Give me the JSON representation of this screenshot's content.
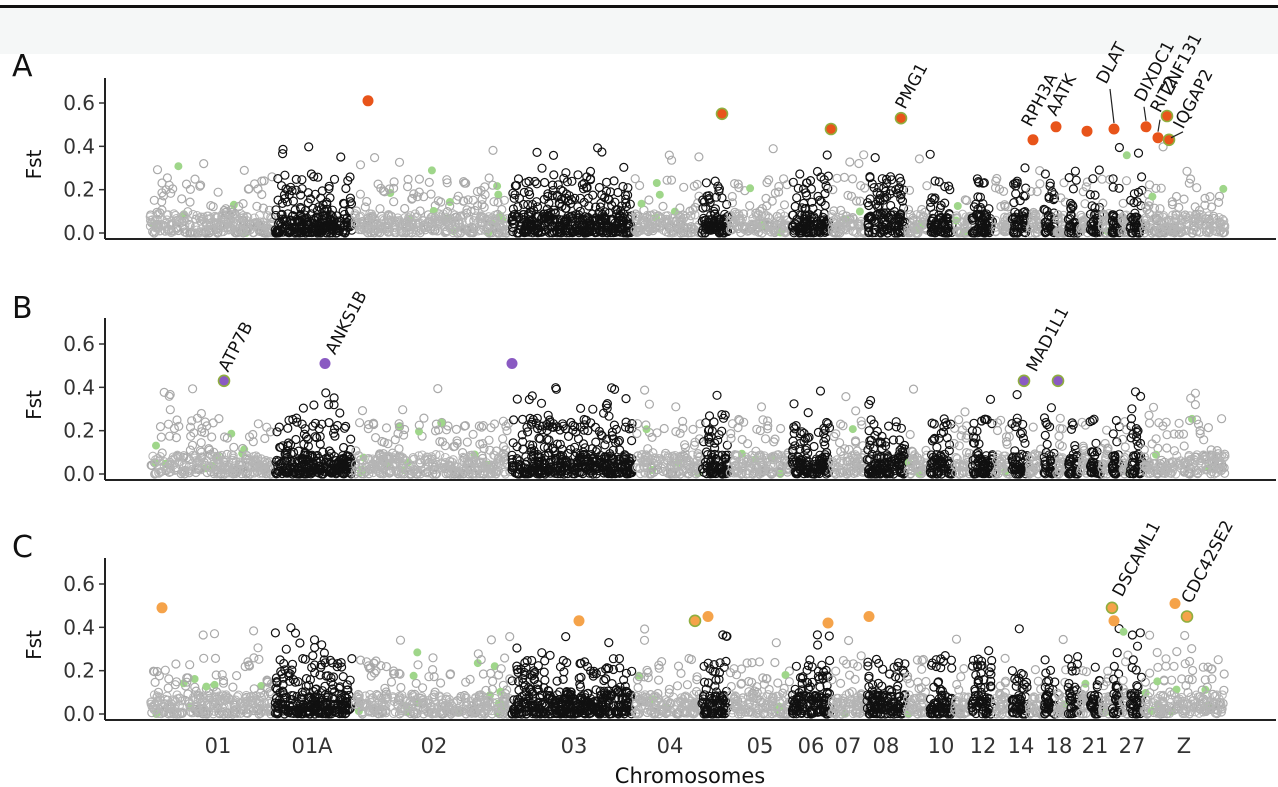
{
  "chart_data": {
    "type": "scatter",
    "xlabel": "Chromosomes",
    "ylabel": "Fst",
    "ylim": [
      0.0,
      0.7
    ],
    "yticks": [
      "0.0",
      "0.2",
      "0.4",
      "0.6"
    ],
    "chromosome_labels": [
      "01",
      "01A",
      "02",
      "03",
      "04",
      "05",
      "06",
      "07",
      "08",
      "10",
      "12",
      "14",
      "18",
      "21",
      "27",
      "Z"
    ],
    "chromosome_blocks": [
      {
        "id": "01",
        "span": [
          150,
          272
        ],
        "shade": "light"
      },
      {
        "id": "01A",
        "span": [
          275,
          352
        ],
        "shade": "dark"
      },
      {
        "id": "02",
        "span": [
          355,
          510
        ],
        "shade": "light"
      },
      {
        "id": "03",
        "span": [
          512,
          632
        ],
        "shade": "dark"
      },
      {
        "id": "04",
        "span": [
          635,
          700
        ],
        "shade": "light"
      },
      {
        "id": "04b",
        "span": [
          702,
          728
        ],
        "shade": "dark"
      },
      {
        "id": "05",
        "span": [
          730,
          790
        ],
        "shade": "light"
      },
      {
        "id": "06",
        "span": [
          792,
          830
        ],
        "shade": "dark"
      },
      {
        "id": "07",
        "span": [
          832,
          865
        ],
        "shade": "light"
      },
      {
        "id": "08",
        "span": [
          867,
          905
        ],
        "shade": "dark"
      },
      {
        "id": "09",
        "span": [
          907,
          928
        ],
        "shade": "light"
      },
      {
        "id": "10",
        "span": [
          930,
          952
        ],
        "shade": "dark"
      },
      {
        "id": "11",
        "span": [
          954,
          970
        ],
        "shade": "light"
      },
      {
        "id": "12",
        "span": [
          972,
          993
        ],
        "shade": "dark"
      },
      {
        "id": "13",
        "span": [
          995,
          1010
        ],
        "shade": "light"
      },
      {
        "id": "14",
        "span": [
          1012,
          1027
        ],
        "shade": "dark"
      },
      {
        "id": "15",
        "span": [
          1029,
          1042
        ],
        "shade": "light"
      },
      {
        "id": "18",
        "span": [
          1044,
          1055
        ],
        "shade": "dark"
      },
      {
        "id": "19",
        "span": [
          1057,
          1066
        ],
        "shade": "light"
      },
      {
        "id": "20",
        "span": [
          1068,
          1078
        ],
        "shade": "dark"
      },
      {
        "id": "21",
        "span": [
          1080,
          1088
        ],
        "shade": "light"
      },
      {
        "id": "22",
        "span": [
          1090,
          1100
        ],
        "shade": "dark"
      },
      {
        "id": "23",
        "span": [
          1102,
          1110
        ],
        "shade": "light"
      },
      {
        "id": "24",
        "span": [
          1112,
          1120
        ],
        "shade": "dark"
      },
      {
        "id": "26",
        "span": [
          1122,
          1128
        ],
        "shade": "light"
      },
      {
        "id": "27",
        "span": [
          1130,
          1142
        ],
        "shade": "dark"
      },
      {
        "id": "28",
        "span": [
          1144,
          1150
        ],
        "shade": "light"
      },
      {
        "id": "Z",
        "span": [
          1152,
          1225
        ],
        "shade": "light"
      }
    ],
    "panels": [
      {
        "label": "A",
        "highlight_color": "#e8541a",
        "highlights": [
          {
            "x": 368,
            "fst": 0.61
          },
          {
            "x": 722,
            "fst": 0.55,
            "ring": true
          },
          {
            "x": 831,
            "fst": 0.48,
            "ring": true
          },
          {
            "x": 901,
            "fst": 0.53,
            "ring": true,
            "gene": "PMG1"
          },
          {
            "x": 1033,
            "fst": 0.43,
            "gene": "RPH3A"
          },
          {
            "x": 1056,
            "fst": 0.49,
            "gene": "AATK"
          },
          {
            "x": 1087,
            "fst": 0.47
          },
          {
            "x": 1114,
            "fst": 0.48,
            "gene": "DLAT"
          },
          {
            "x": 1146,
            "fst": 0.49,
            "gene": "DIXDC1"
          },
          {
            "x": 1158,
            "fst": 0.44,
            "gene": "RIT2"
          },
          {
            "x": 1167,
            "fst": 0.54,
            "ring": true,
            "gene": "ZNF131"
          },
          {
            "x": 1169,
            "fst": 0.43,
            "ring": true,
            "gene": "IQGAP2"
          }
        ],
        "genes": [
          "PMG1",
          "RPH3A",
          "AATK",
          "DLAT",
          "DIXDC1",
          "RIT2",
          "ZNF131",
          "IQGAP2"
        ]
      },
      {
        "label": "B",
        "highlight_color": "#8a5ac2",
        "highlights": [
          {
            "x": 224,
            "fst": 0.43,
            "ring": true,
            "gene": "ATP7B"
          },
          {
            "x": 325,
            "fst": 0.51,
            "gene": "ANKS1B"
          },
          {
            "x": 512,
            "fst": 0.51
          },
          {
            "x": 1024,
            "fst": 0.43,
            "ring": true,
            "gene": "MAD1L1"
          },
          {
            "x": 1058,
            "fst": 0.43,
            "ring": true
          }
        ],
        "genes": [
          "ATP7B",
          "ANKS1B",
          "MAD1L1"
        ]
      },
      {
        "label": "C",
        "highlight_color": "#f5a34a",
        "highlights": [
          {
            "x": 162,
            "fst": 0.49
          },
          {
            "x": 579,
            "fst": 0.43
          },
          {
            "x": 695,
            "fst": 0.43,
            "ring": true
          },
          {
            "x": 708,
            "fst": 0.45
          },
          {
            "x": 828,
            "fst": 0.42
          },
          {
            "x": 869,
            "fst": 0.45
          },
          {
            "x": 1112,
            "fst": 0.49,
            "ring": true,
            "gene": "DSCAML1"
          },
          {
            "x": 1114,
            "fst": 0.43
          },
          {
            "x": 1175,
            "fst": 0.51
          },
          {
            "x": 1187,
            "fst": 0.45,
            "ring": true,
            "gene": "CDC42SE2"
          }
        ],
        "genes": [
          "DSCAML1",
          "CDC42SE2"
        ]
      }
    ]
  }
}
